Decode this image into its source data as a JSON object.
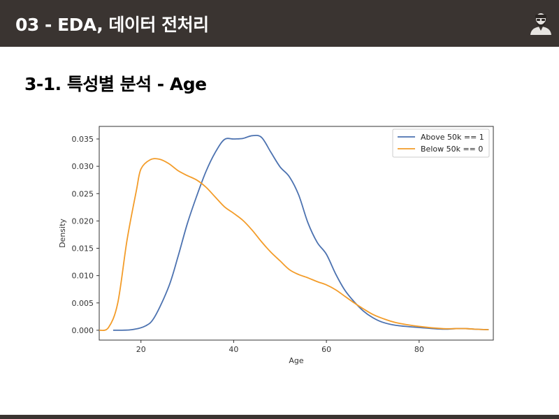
{
  "header": {
    "title": "03 - EDA, 데이터 전처리",
    "avatar_icon": "user-avatar-icon"
  },
  "section": {
    "title": "3-1. 특성별 분석 - Age"
  },
  "colors": {
    "header_bg": "#3a3431",
    "above_series": "#4c72b0",
    "below_series": "#f39c29"
  },
  "chart_data": {
    "type": "line",
    "title": "",
    "xlabel": "Age",
    "ylabel": "Density",
    "xlim": [
      11,
      96
    ],
    "ylim": [
      -0.0018,
      0.0373
    ],
    "x_ticks": [
      20,
      40,
      60,
      80
    ],
    "x_tick_labels": [
      "20",
      "40",
      "60",
      "80"
    ],
    "y_ticks": [
      0.0,
      0.005,
      0.01,
      0.015,
      0.02,
      0.025,
      0.03,
      0.035
    ],
    "y_tick_labels": [
      "0.000",
      "0.005",
      "0.010",
      "0.015",
      "0.020",
      "0.025",
      "0.030",
      "0.035"
    ],
    "grid": false,
    "legend_position": "top-right",
    "series": [
      {
        "name": "Above 50k == 1",
        "color": "#4c72b0",
        "x": [
          14,
          18,
          21,
          23,
          26,
          28,
          30,
          32,
          34,
          36,
          38,
          40,
          42,
          44,
          46,
          48,
          50,
          52,
          54,
          56,
          58,
          60,
          62,
          64,
          66,
          68,
          70,
          72,
          75,
          80,
          85,
          88,
          90,
          92,
          95
        ],
        "y": [
          0.0,
          0.0001,
          0.0008,
          0.0025,
          0.008,
          0.0135,
          0.0195,
          0.0245,
          0.029,
          0.0325,
          0.0349,
          0.035,
          0.0351,
          0.0356,
          0.0353,
          0.0326,
          0.0299,
          0.0281,
          0.0248,
          0.0197,
          0.0161,
          0.0139,
          0.0103,
          0.0073,
          0.0052,
          0.0035,
          0.0023,
          0.0015,
          0.0009,
          0.0005,
          0.0002,
          0.0003,
          0.0003,
          0.0002,
          0.0001
        ]
      },
      {
        "name": "Below 50k == 0",
        "color": "#f39c29",
        "x": [
          11,
          13,
          15,
          17,
          19,
          20,
          22,
          24,
          26,
          28,
          30,
          32,
          34,
          36,
          38,
          40,
          42,
          44,
          46,
          48,
          50,
          52,
          54,
          56,
          58,
          60,
          62,
          64,
          66,
          68,
          70,
          72,
          75,
          80,
          85,
          88,
          90,
          92,
          95
        ],
        "y": [
          0.0,
          0.0005,
          0.005,
          0.0165,
          0.0255,
          0.0295,
          0.0312,
          0.0313,
          0.0305,
          0.0292,
          0.0283,
          0.0275,
          0.0262,
          0.0244,
          0.0226,
          0.0214,
          0.0201,
          0.0183,
          0.0162,
          0.0143,
          0.0127,
          0.0111,
          0.0102,
          0.0096,
          0.0089,
          0.0083,
          0.0074,
          0.0062,
          0.005,
          0.0039,
          0.0029,
          0.0022,
          0.0014,
          0.0007,
          0.0003,
          0.0003,
          0.0003,
          0.0002,
          0.0001
        ]
      }
    ]
  }
}
